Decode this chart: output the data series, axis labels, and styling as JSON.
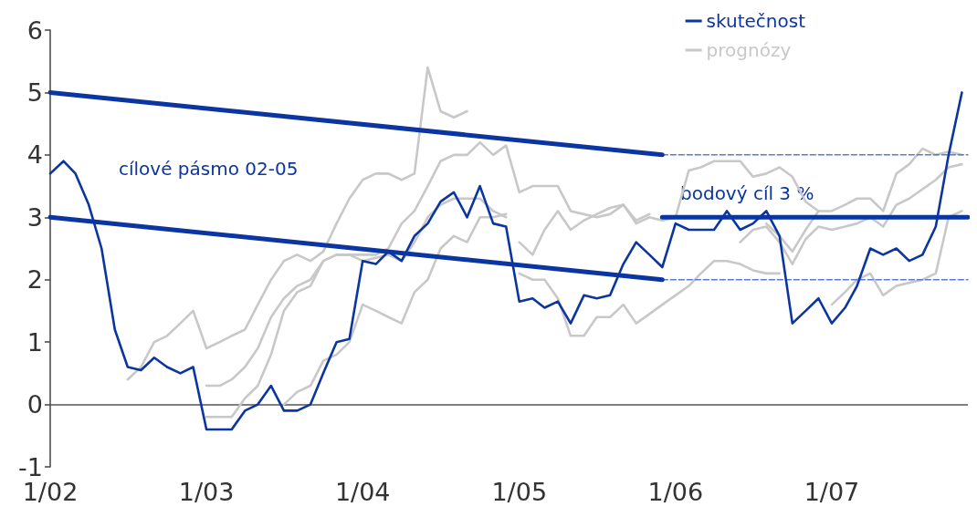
{
  "chart_data": {
    "type": "line",
    "legend": "top right",
    "grid": false,
    "marker": "none",
    "line_style": "solid",
    "xlim": [
      "2002-01",
      "2007-11-15"
    ],
    "xticks": [
      {
        "value": "2002-01",
        "label": "1/02"
      },
      {
        "value": "2003-01",
        "label": "1/03"
      },
      {
        "value": "2004-01",
        "label": "1/04"
      },
      {
        "value": "2005-01",
        "label": "1/05"
      },
      {
        "value": "2006-01",
        "label": "1/06"
      },
      {
        "value": "2007-01",
        "label": "1/07"
      }
    ],
    "ylim": [
      -1,
      6
    ],
    "yticks": [
      -1,
      0,
      1,
      2,
      3,
      4,
      5,
      6
    ],
    "ref_lines": [
      {
        "axis": "y",
        "value": 0,
        "color": "#555555"
      }
    ],
    "annotations": [
      "cílové pásmo 02-05",
      "bodový cíl 3 %"
    ],
    "series": [
      {
        "name": "skutečnost",
        "color": "#0b35a0",
        "x": [
          "2002-01",
          "2002-02",
          "2002-03",
          "2002-04",
          "2002-05",
          "2002-06",
          "2002-07",
          "2002-08",
          "2002-09",
          "2002-10",
          "2002-11",
          "2002-12",
          "2003-01",
          "2003-02",
          "2003-03",
          "2003-04",
          "2003-05",
          "2003-06",
          "2003-07",
          "2003-08",
          "2003-09",
          "2003-10",
          "2003-11",
          "2003-12",
          "2004-01",
          "2004-02",
          "2004-03",
          "2004-04",
          "2004-05",
          "2004-06",
          "2004-07",
          "2004-08",
          "2004-09",
          "2004-10",
          "2004-11",
          "2004-12",
          "2005-01",
          "2005-02",
          "2005-03",
          "2005-04",
          "2005-05",
          "2005-06",
          "2005-07",
          "2005-08",
          "2005-09",
          "2005-10",
          "2005-11",
          "2005-12",
          "2006-01",
          "2006-02",
          "2006-03",
          "2006-04",
          "2006-05",
          "2006-06",
          "2006-07",
          "2006-08",
          "2006-09",
          "2006-10",
          "2006-11",
          "2006-12",
          "2007-01",
          "2007-02",
          "2007-03",
          "2007-04",
          "2007-05",
          "2007-06",
          "2007-07",
          "2007-08",
          "2007-09",
          "2007-10",
          "2007-11"
        ],
        "values": [
          3.7,
          3.9,
          3.7,
          3.2,
          2.5,
          1.2,
          0.6,
          0.55,
          0.75,
          0.6,
          0.5,
          0.6,
          -0.4,
          -0.4,
          -0.4,
          -0.1,
          0.0,
          0.3,
          -0.1,
          -0.1,
          0.0,
          0.5,
          1.0,
          1.05,
          2.3,
          2.25,
          2.45,
          2.3,
          2.7,
          2.9,
          3.25,
          3.4,
          3.0,
          3.5,
          2.9,
          2.85,
          1.65,
          1.7,
          1.55,
          1.65,
          1.3,
          1.75,
          1.7,
          1.75,
          2.25,
          2.6,
          2.4,
          2.2,
          2.9,
          2.8,
          2.8,
          2.8,
          3.1,
          2.8,
          2.9,
          3.1,
          2.7,
          1.3,
          1.5,
          1.7,
          1.3,
          1.55,
          1.9,
          2.5,
          2.4,
          2.5,
          2.3,
          2.4,
          2.85,
          4.0,
          5.0
        ]
      },
      {
        "color": "#0b35a0",
        "x": [
          "2002-01",
          "2005-12"
        ],
        "values": [
          5,
          4
        ]
      },
      {
        "color": "#0b35a0",
        "x": [
          "2002-01",
          "2005-12"
        ],
        "values": [
          3,
          2
        ]
      },
      {
        "color": "#0b35a0",
        "x": [
          "2005-12",
          "2007-11-15"
        ],
        "values": [
          3,
          3
        ]
      },
      {
        "color": "#5b7bd5",
        "line_style": "dashed",
        "x": [
          "2005-12",
          "2007-11-15"
        ],
        "values": [
          4,
          4
        ]
      },
      {
        "color": "#5b7bd5",
        "line_style": "dashed",
        "x": [
          "2005-12",
          "2007-11-15"
        ],
        "values": [
          2,
          2
        ]
      },
      {
        "name": "prognózy",
        "color": "#c8c8c8",
        "x": [
          "2002-07",
          "2002-08",
          "2002-09",
          "2002-10",
          "2002-11",
          "2002-12",
          "2003-01",
          "2003-02",
          "2003-03",
          "2003-04",
          "2003-05",
          "2003-06",
          "2003-07",
          "2003-08",
          "2003-09",
          "2003-10",
          "2003-11",
          "2003-12",
          "2004-01",
          "2004-02",
          "2004-03",
          "2004-04",
          "2004-05",
          "2004-06",
          "2004-07",
          "2004-08",
          "2004-09"
        ],
        "values": [
          0.4,
          0.6,
          1.0,
          1.1,
          1.3,
          1.5,
          0.9,
          1.0,
          1.1,
          1.2,
          1.6,
          2.0,
          2.3,
          2.4,
          2.3,
          2.45,
          2.9,
          3.3,
          3.6,
          3.7,
          3.7,
          3.6,
          3.7,
          5.4,
          4.7,
          4.6,
          4.7
        ]
      },
      {
        "color": "#c8c8c8",
        "x": [
          "2003-01",
          "2003-02",
          "2003-03",
          "2003-04",
          "2003-05",
          "2003-06",
          "2003-07",
          "2003-08",
          "2003-09",
          "2003-10",
          "2003-11",
          "2003-12",
          "2004-01",
          "2004-02",
          "2004-03",
          "2004-04",
          "2004-05",
          "2004-06",
          "2004-07",
          "2004-08",
          "2004-09",
          "2004-10",
          "2004-11",
          "2004-12"
        ],
        "values": [
          0.3,
          0.3,
          0.4,
          0.6,
          0.9,
          1.4,
          1.7,
          1.9,
          2.0,
          2.3,
          2.4,
          2.4,
          2.3,
          2.35,
          2.4,
          2.3,
          2.6,
          3.0,
          3.2,
          3.3,
          3.3,
          3.3,
          3.1,
          3.0
        ]
      },
      {
        "color": "#c8c8c8",
        "x": [
          "2003-01",
          "2003-02",
          "2003-03",
          "2003-04",
          "2003-05",
          "2003-06",
          "2003-07",
          "2003-08",
          "2003-09",
          "2003-10",
          "2003-11",
          "2003-12",
          "2004-01",
          "2004-02",
          "2004-03",
          "2004-04",
          "2004-05",
          "2004-06",
          "2004-07",
          "2004-08",
          "2004-09",
          "2004-10",
          "2004-11",
          "2004-12",
          "2005-01",
          "2005-02",
          "2005-03",
          "2005-04",
          "2005-05",
          "2005-06",
          "2005-07",
          "2005-08",
          "2005-09",
          "2005-10",
          "2005-11"
        ],
        "values": [
          -0.2,
          -0.2,
          -0.2,
          0.1,
          0.3,
          0.8,
          1.5,
          1.8,
          1.9,
          2.3,
          2.4,
          2.4,
          2.4,
          2.4,
          2.5,
          2.9,
          3.1,
          3.5,
          3.9,
          4.0,
          4.0,
          4.2,
          4.0,
          4.15,
          3.4,
          3.5,
          3.5,
          3.5,
          3.1,
          3.05,
          3.0,
          3.05,
          3.2,
          2.95,
          3.05
        ]
      },
      {
        "color": "#c8c8c8",
        "x": [
          "2003-07",
          "2003-08",
          "2003-09",
          "2003-10",
          "2003-11",
          "2003-12",
          "2004-01",
          "2004-02",
          "2004-03",
          "2004-04",
          "2004-05",
          "2004-06",
          "2004-07",
          "2004-08",
          "2004-09",
          "2004-10",
          "2004-11",
          "2004-12"
        ],
        "values": [
          0.0,
          0.2,
          0.3,
          0.7,
          0.8,
          1.0,
          1.6,
          1.5,
          1.4,
          1.3,
          1.8,
          2.0,
          2.5,
          2.7,
          2.6,
          3.0,
          3.0,
          3.05
        ]
      },
      {
        "color": "#c8c8c8",
        "x": [
          "2005-01",
          "2005-02",
          "2005-03",
          "2005-04",
          "2005-05",
          "2005-06",
          "2005-07",
          "2005-08",
          "2005-09",
          "2005-10",
          "2005-11",
          "2005-12",
          "2006-01",
          "2006-02",
          "2006-03",
          "2006-04",
          "2006-05",
          "2006-06",
          "2006-07",
          "2006-08",
          "2006-09"
        ],
        "values": [
          2.1,
          2.0,
          2.0,
          1.7,
          1.1,
          1.1,
          1.4,
          1.4,
          1.6,
          1.3,
          1.45,
          1.6,
          1.75,
          1.9,
          2.1,
          2.3,
          2.3,
          2.25,
          2.15,
          2.1,
          2.1
        ]
      },
      {
        "color": "#c8c8c8",
        "x": [
          "2005-01",
          "2005-02",
          "2005-03",
          "2005-04",
          "2005-05",
          "2005-06",
          "2005-07",
          "2005-08",
          "2005-09",
          "2005-10",
          "2005-11",
          "2005-12",
          "2006-01",
          "2006-02",
          "2006-03",
          "2006-04",
          "2006-05",
          "2006-06",
          "2006-07",
          "2006-08",
          "2006-09",
          "2006-10",
          "2006-11",
          "2006-12"
        ],
        "values": [
          2.6,
          2.4,
          2.8,
          3.1,
          2.8,
          2.95,
          3.05,
          3.15,
          3.2,
          2.9,
          3.0,
          2.95,
          3.0,
          3.75,
          3.8,
          3.9,
          3.9,
          3.9,
          3.65,
          3.7,
          3.8,
          3.65,
          3.25,
          3.1
        ]
      },
      {
        "color": "#c8c8c8",
        "x": [
          "2006-06",
          "2006-07",
          "2006-08",
          "2006-09",
          "2006-10",
          "2006-11",
          "2006-12",
          "2007-01",
          "2007-02",
          "2007-03",
          "2007-04",
          "2007-05",
          "2007-06",
          "2007-07",
          "2007-08",
          "2007-09",
          "2007-10",
          "2007-11"
        ],
        "values": [
          2.6,
          2.8,
          2.85,
          2.6,
          2.25,
          2.65,
          2.85,
          2.8,
          2.85,
          2.9,
          3.0,
          2.85,
          3.2,
          3.3,
          3.45,
          3.6,
          3.8,
          3.85
        ]
      },
      {
        "color": "#c8c8c8",
        "x": [
          "2006-08",
          "2006-09",
          "2006-10",
          "2006-11",
          "2006-12",
          "2007-01",
          "2007-02",
          "2007-03",
          "2007-04",
          "2007-05",
          "2007-06",
          "2007-07",
          "2007-08",
          "2007-09",
          "2007-10",
          "2007-11"
        ],
        "values": [
          2.9,
          2.7,
          2.45,
          2.8,
          3.1,
          3.1,
          3.2,
          3.3,
          3.3,
          3.1,
          3.7,
          3.85,
          4.1,
          4.0,
          4.05,
          4.0
        ]
      },
      {
        "color": "#c8c8c8",
        "x": [
          "2007-01",
          "2007-02",
          "2007-03",
          "2007-04",
          "2007-05",
          "2007-06",
          "2007-07",
          "2007-08",
          "2007-09",
          "2007-10",
          "2007-11"
        ],
        "values": [
          1.6,
          1.8,
          2.0,
          2.1,
          1.75,
          1.9,
          1.95,
          2.0,
          2.1,
          3.0,
          3.1
        ]
      }
    ]
  }
}
